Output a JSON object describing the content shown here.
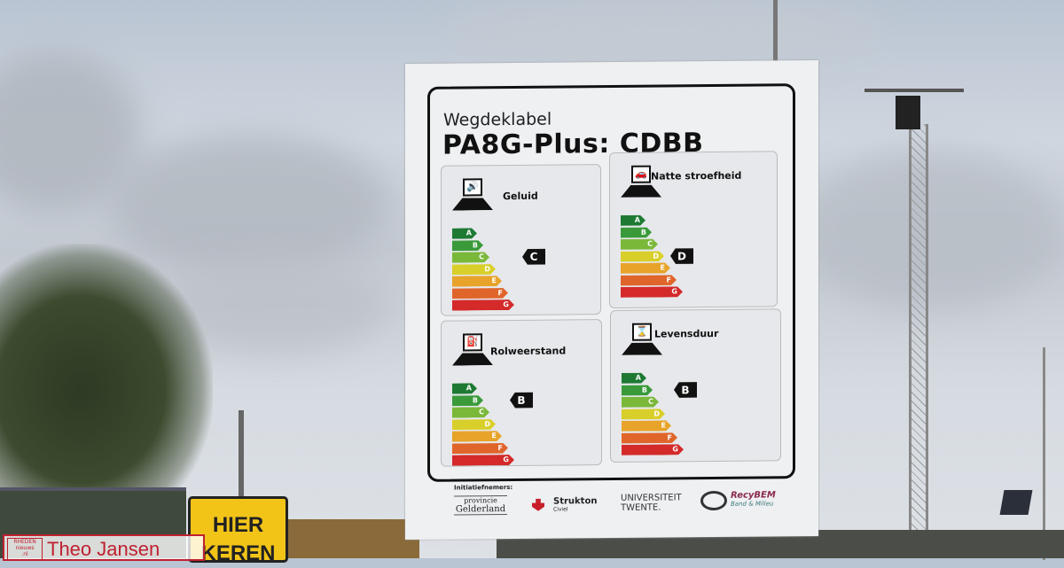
{
  "sign": {
    "subtitle": "Wegdeklabel",
    "title": "PA8G-Plus: CDBB",
    "scale": [
      "A",
      "B",
      "C",
      "D",
      "E",
      "F",
      "G"
    ],
    "scale_colors": [
      "#1e7a33",
      "#3a9a3a",
      "#7ab83a",
      "#d9cf2a",
      "#e8a32a",
      "#e0652a",
      "#d42a2a"
    ],
    "panels": [
      {
        "label": "Geluid",
        "rating": "C",
        "icon": "speaker-icon"
      },
      {
        "label": "Natte stroefheid",
        "rating": "D",
        "icon": "skidding-car-icon"
      },
      {
        "label": "Rolweerstand",
        "rating": "B",
        "icon": "fuel-pump-icon"
      },
      {
        "label": "Levensduur",
        "rating": "B",
        "icon": "hourglass-icon"
      }
    ],
    "footer": {
      "initiators": "Initiatiefnemers:",
      "logo1_a": "provincie",
      "logo1_b": "Gelderland",
      "logo2_a": "Strukton",
      "logo2_b": "Civiel",
      "logo3_a": "UNIVERSITEIT",
      "logo3_b": "TWENTE.",
      "logo4_a": "RecyBEM",
      "logo4_b": "Band & Milieu"
    }
  },
  "street_sign": {
    "line1": "HIER",
    "line2": "KEREN"
  },
  "watermark": {
    "logo": "RHEDEN nieuws .nl",
    "name": "Theo Jansen"
  }
}
